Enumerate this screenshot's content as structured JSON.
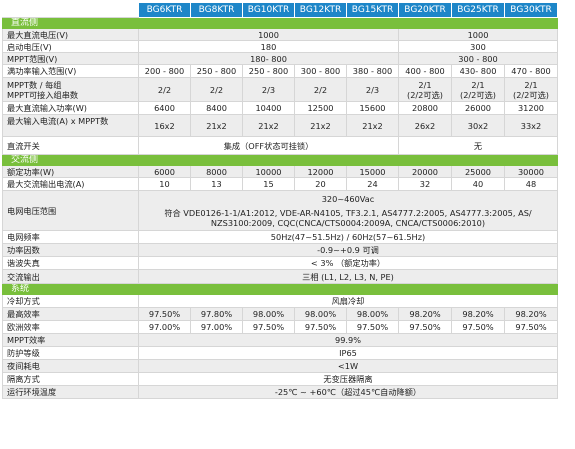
{
  "headers": [
    "BG6KTR",
    "BG8KTR",
    "BG10KTR",
    "BG12KTR",
    "BG15KTR",
    "BG20KTR",
    "BG25KTR",
    "BG30KTR"
  ],
  "dc": {
    "title": "直流侧",
    "max_voltage": {
      "label": "最大直流电压(V)",
      "v1": "1000",
      "v2": "1000"
    },
    "start_voltage": {
      "label": "启动电压(V)",
      "v1": "180",
      "v2": "300"
    },
    "mppt_range": {
      "label": "MPPT范围(V)",
      "v1": "180- 800",
      "v2": "300 - 800"
    },
    "full_load": {
      "label": "满功率输入范围(V)",
      "values": [
        "200 - 800",
        "250 - 800",
        "250 - 800",
        "300 - 800",
        "380 - 800",
        "400 - 800",
        "430- 800",
        "470 - 800"
      ]
    },
    "mppt_num": {
      "label": "MPPT数 / 每组\nMPPT可接入组串数",
      "values": [
        "2/2",
        "2/2",
        "2/3",
        "2/2",
        "2/3",
        "2/1\n(2/2可选)",
        "2/1\n(2/2可选)",
        "2/1\n(2/2可选)"
      ]
    },
    "max_power": {
      "label": "最大直流输入功率(W)",
      "values": [
        "6400",
        "8400",
        "10400",
        "12500",
        "15600",
        "20800",
        "26000",
        "31200"
      ]
    },
    "max_current": {
      "label": "最大输入电流(A) x MPPT数",
      "values": [
        "16x2",
        "21x2",
        "21x2",
        "21x2",
        "21x2",
        "26x2",
        "30x2",
        "33x2"
      ]
    },
    "dc_switch": {
      "label": "直流开关",
      "v1": "集成（OFF状态可挂锁）",
      "v2": "无"
    }
  },
  "ac": {
    "title": "交流侧",
    "rated_power": {
      "label": "额定功率(W)",
      "values": [
        "6000",
        "8000",
        "10000",
        "12000",
        "15000",
        "20000",
        "25000",
        "30000"
      ]
    },
    "max_current": {
      "label": "最大交流输出电流(A)",
      "values": [
        "10",
        "13",
        "15",
        "20",
        "24",
        "32",
        "40",
        "48"
      ]
    },
    "grid_voltage": {
      "label": "电网电压范围",
      "line1": "320~460Vac",
      "line2": "符合 VDE0126-1-1/A1:2012, VDE-AR-N4105, TF3.2.1, AS4777.2:2005, AS4777.3:2005, AS/",
      "line3": "NZS3100:2009, CQC(CNCA/CTS0004:2009A, CNCA/CTS0006:2010)"
    },
    "grid_freq": {
      "label": "电网频率",
      "value": "50Hz(47~51.5Hz) / 60Hz(57~61.5Hz)"
    },
    "power_factor": {
      "label": "功率因数",
      "value": "-0.9~+0.9 可调"
    },
    "thd": {
      "label": "谐波失真",
      "value": "< 3% （额定功率）"
    },
    "output": {
      "label": "交流输出",
      "value": "三相 (L1, L2, L3, N, PE)"
    }
  },
  "system": {
    "title": "系统",
    "cooling": {
      "label": "冷却方式",
      "value": "风扇冷却"
    },
    "max_eff": {
      "label": "最高效率",
      "values": [
        "97.50%",
        "97.80%",
        "98.00%",
        "98.00%",
        "98.00%",
        "98.20%",
        "98.20%",
        "98.20%"
      ]
    },
    "eu_eff": {
      "label": "欧洲效率",
      "values": [
        "97.00%",
        "97.00%",
        "97.50%",
        "97.50%",
        "97.50%",
        "97.50%",
        "97.50%",
        "97.50%"
      ]
    },
    "mppt_eff": {
      "label": "MPPT效率",
      "value": "99.9%"
    },
    "protection": {
      "label": "防护等级",
      "value": "IP65"
    },
    "night": {
      "label": "夜间耗电",
      "value": "<1W"
    },
    "isolation": {
      "label": "隔离方式",
      "value": "无变压器隔离"
    },
    "temp": {
      "label": "运行环境温度",
      "value": "-25℃ ~ +60℃（超过45℃自动降额）"
    }
  }
}
